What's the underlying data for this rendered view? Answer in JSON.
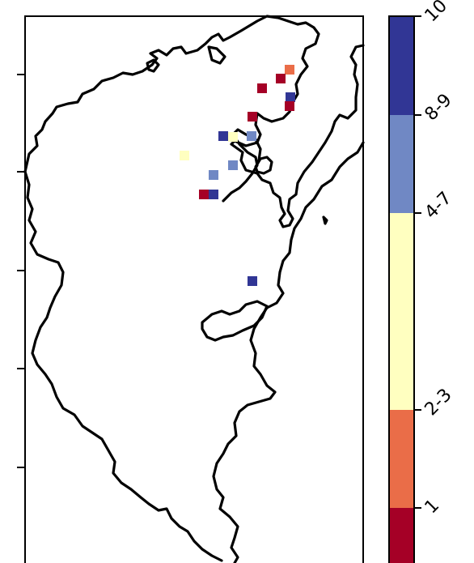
{
  "map": {
    "axis_ticks_left_count": 5
  },
  "colorbar": {
    "segments": [
      {
        "label": "1",
        "color": "#a50026"
      },
      {
        "label": "2-3",
        "color": "#ea6d48"
      },
      {
        "label": "4-7",
        "color": "#ffffc0"
      },
      {
        "label": "8-9",
        "color": "#7088c4"
      },
      {
        "label": "10",
        "color": "#313695"
      }
    ],
    "tick_labels": [
      "1",
      "2-3",
      "4-7",
      "8-9",
      "10"
    ]
  },
  "sites": [
    {
      "category": "2-3"
    },
    {
      "category": "1"
    },
    {
      "category": "1"
    },
    {
      "category": "10"
    },
    {
      "category": "1"
    },
    {
      "category": "1"
    },
    {
      "category": "10"
    },
    {
      "category": "4-7"
    },
    {
      "category": "8-9"
    },
    {
      "category": "4-7"
    },
    {
      "category": "8-9"
    },
    {
      "category": "8-9"
    },
    {
      "category": "1"
    },
    {
      "category": "10"
    },
    {
      "category": "10"
    }
  ]
}
